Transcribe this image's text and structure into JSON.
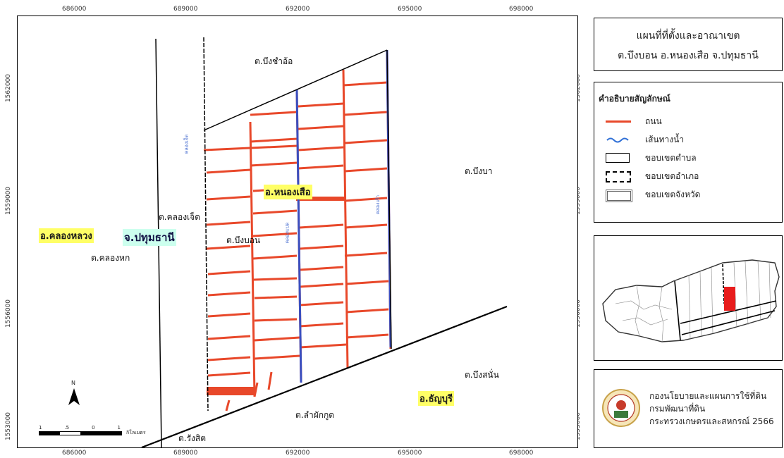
{
  "coords": {
    "x_labels": [
      "686000",
      "689000",
      "692000",
      "695000",
      "698000"
    ],
    "y_labels": [
      "1562000",
      "1559000",
      "1556000",
      "1553000"
    ]
  },
  "title": {
    "line1": "แผนที่ที่ตั้งและอาณาเขต",
    "line2": "ต.บึงบอน อ.หนองเสือ จ.ปทุมธานี"
  },
  "legend": {
    "heading": "คำอธิบายสัญลักษณ์",
    "items": [
      {
        "label": "ถนน",
        "color": "#e8482a"
      },
      {
        "label": "เส้นทางน้ำ",
        "color": "#2e6fd6"
      },
      {
        "label": "ขอบเขตตำบล",
        "color": "#000000"
      },
      {
        "label": "ขอบเขตอำเภอ",
        "color": "#000000"
      },
      {
        "label": "ขอบเขตจังหวัด",
        "color": "#666666"
      }
    ]
  },
  "places": {
    "bueng_cham_o": "ต.บึงชำอ้อ",
    "bueng_ba": "ต.บึงบา",
    "nong_suea": "อ.หนองเสือ",
    "khlong_chet": "ต.คลองเจ็ด",
    "bueng_bon": "ต.บึงบอน",
    "khlong_luang": "อ.คลองหลวง",
    "pathum_thani": "จ.ปทุมธานี",
    "khlong_hok": "ต.คลองหก",
    "bueng_san": "ต.บึงสนั่น",
    "thanyaburi": "อ.ธัญบุรี",
    "lam_phak_kut": "ต.ลำผักกูด",
    "rangsit": "ต.รังสิต"
  },
  "canals": {
    "c1": "คลองเจ็ด",
    "c2": "คลองแปด",
    "c3": "คลองเก้า"
  },
  "scalebar": {
    "north": "N",
    "ticks": [
      "1",
      ".5",
      "0",
      "1"
    ],
    "unit": "กิโลเมตร"
  },
  "credit": {
    "line1": "กองนโยบายและแผนการใช้ที่ดิน",
    "line2": "กรมพัฒนาที่ดิน",
    "line3": "กระทรวงเกษตรและสหกรณ์ 2566"
  },
  "colors": {
    "road": "#e8482a",
    "water": "#3a4fc0",
    "highlight": "#ffff66",
    "inset_target": "#e81c1c"
  }
}
